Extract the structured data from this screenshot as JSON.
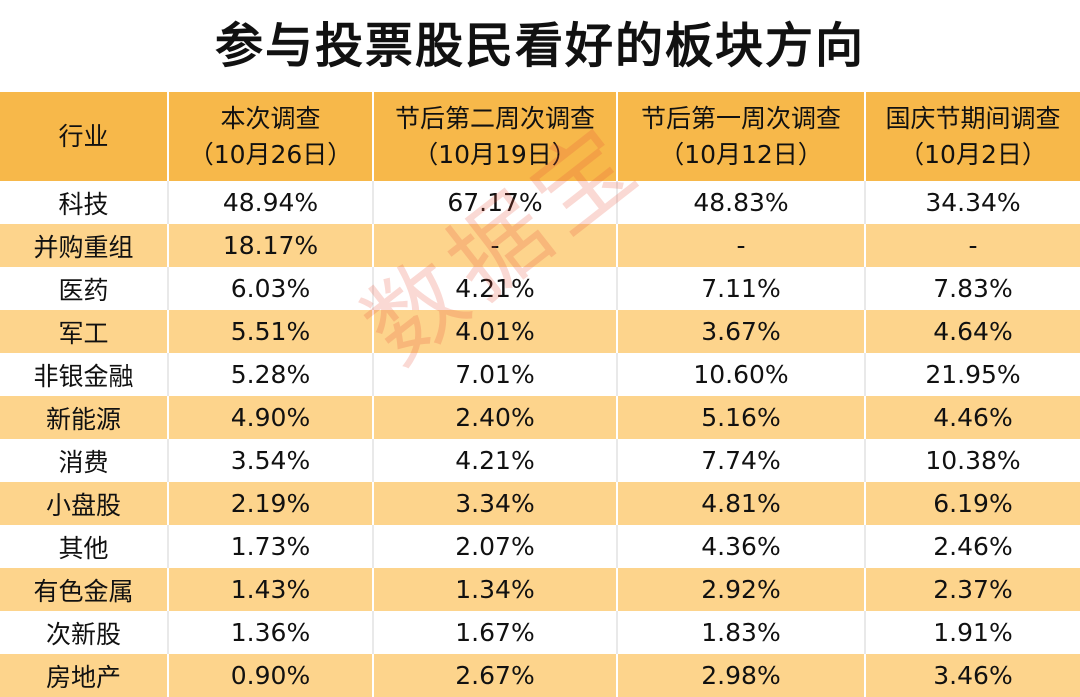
{
  "title": "参与投票股民看好的板块方向",
  "watermark": "数据宝",
  "table": {
    "headers": [
      {
        "line1": "行业",
        "line2": ""
      },
      {
        "line1": "本次调查",
        "line2": "（10月26日）"
      },
      {
        "line1": "节后第二周次调查",
        "line2": "（10月19日）"
      },
      {
        "line1": "节后第一周次调查",
        "line2": "（10月12日）"
      },
      {
        "line1": "国庆节期间调查",
        "line2": "（10月2日）"
      }
    ],
    "rows": [
      [
        "科技",
        "48.94%",
        "67.17%",
        "48.83%",
        "34.34%"
      ],
      [
        "并购重组",
        "18.17%",
        "-",
        "-",
        "-"
      ],
      [
        "医药",
        "6.03%",
        "4.21%",
        "7.11%",
        "7.83%"
      ],
      [
        "军工",
        "5.51%",
        "4.01%",
        "3.67%",
        "4.64%"
      ],
      [
        "非银金融",
        "5.28%",
        "7.01%",
        "10.60%",
        "21.95%"
      ],
      [
        "新能源",
        "4.90%",
        "2.40%",
        "5.16%",
        "4.46%"
      ],
      [
        "消费",
        "3.54%",
        "4.21%",
        "7.74%",
        "10.38%"
      ],
      [
        "小盘股",
        "2.19%",
        "3.34%",
        "4.81%",
        "6.19%"
      ],
      [
        "其他",
        "1.73%",
        "2.07%",
        "4.36%",
        "2.46%"
      ],
      [
        "有色金属",
        "1.43%",
        "1.34%",
        "2.92%",
        "2.37%"
      ],
      [
        "次新股",
        "1.36%",
        "1.67%",
        "1.83%",
        "1.91%"
      ],
      [
        "房地产",
        "0.90%",
        "2.67%",
        "2.98%",
        "3.46%"
      ]
    ]
  },
  "colors": {
    "header_bg": "#f7b84a",
    "stripe_bg": "#fdd48c",
    "watermark": "#e8503c"
  }
}
